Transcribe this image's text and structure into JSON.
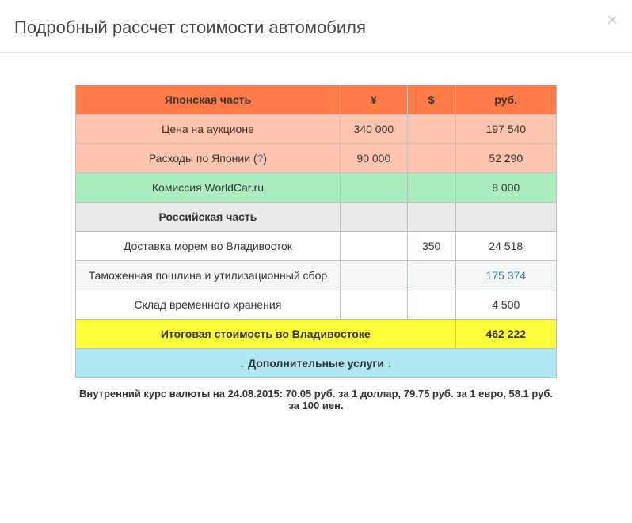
{
  "modal": {
    "title": "Подробный рассчет стоимости автомобиля"
  },
  "table": {
    "header": {
      "section1": "Японская часть",
      "yen": "¥",
      "usd": "$",
      "rub": "руб."
    },
    "rows": {
      "auction": {
        "label": "Цена на аукционе",
        "yen": "340 000",
        "usd": "",
        "rub": "197 540"
      },
      "japan_exp": {
        "label_pre": "Расходы по Японии (",
        "help": "?",
        "label_post": ")",
        "yen": "90 000",
        "usd": "",
        "rub": "52 290"
      },
      "commission": {
        "label": "Комиссия WorldCar.ru",
        "yen": "",
        "usd": "",
        "rub": "8 000"
      },
      "section2": {
        "label": "Российская часть"
      },
      "sea": {
        "label": "Доставка морем во Владивосток",
        "yen": "",
        "usd": "350",
        "rub": "24 518"
      },
      "customs": {
        "label": "Таможенная пошлина и утилизационный сбор",
        "yen": "",
        "usd": "",
        "rub": "175 374"
      },
      "storage": {
        "label": "Склад временного хранения",
        "yen": "",
        "usd": "",
        "rub": "4 500"
      },
      "total": {
        "label": "Итоговая стоимость во Владивостоке",
        "rub": "462 222"
      },
      "extra": {
        "label": "↓ Дополнительные услуги ↓"
      }
    }
  },
  "footnote": "Внутренний курс валюты на 24.08.2015: 70.05 руб. за 1 доллар, 79.75 руб. за 1 евро, 58.1 руб. за 100 иен."
}
